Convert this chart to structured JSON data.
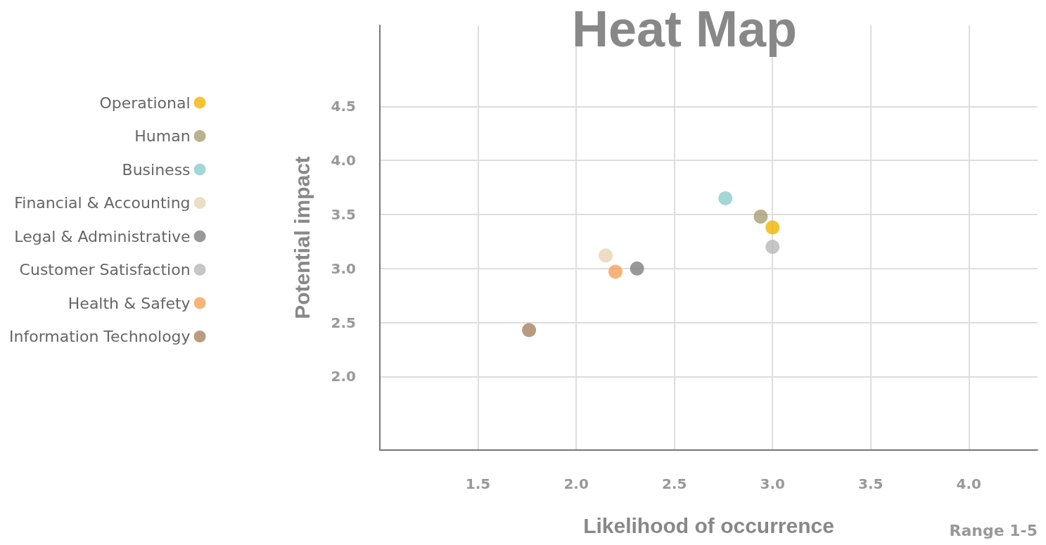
{
  "chart_data": {
    "type": "scatter",
    "title": "Heat Map",
    "xlabel": "Likelihood of occurrence",
    "ylabel": "Potential impact",
    "annotations": [
      "Range 1-5"
    ],
    "xlim": [
      1.0,
      4.35
    ],
    "ylim": [
      1.32,
      5.25
    ],
    "xticks": [
      1.5,
      {
        "value": 2,
        "label": "2.0"
      },
      2.5,
      {
        "value": 3,
        "label": "3.0"
      },
      3.5,
      {
        "value": 4,
        "label": "4.0"
      }
    ],
    "yticks": [
      {
        "value": 2,
        "label": "2.0"
      },
      2.5,
      {
        "value": 3,
        "label": "3.0"
      },
      3.5,
      {
        "value": 4,
        "label": "4.0"
      },
      4.5
    ],
    "grid": true,
    "legend": "left",
    "marker": "circle",
    "series": [
      {
        "name": "Operational",
        "color": "#f0b400",
        "x": [
          3.0
        ],
        "values": [
          3.38
        ]
      },
      {
        "name": "Human",
        "color": "#a89f72",
        "x": [
          2.94
        ],
        "values": [
          3.48
        ]
      },
      {
        "name": "Business",
        "color": "#8ecccc",
        "x": [
          2.76
        ],
        "values": [
          3.65
        ]
      },
      {
        "name": "Financial & Accounting",
        "color": "#e6d6b4",
        "x": [
          2.15
        ],
        "values": [
          3.12
        ]
      },
      {
        "name": "Legal & Administrative",
        "color": "#808080",
        "x": [
          2.31
        ],
        "values": [
          3.0
        ]
      },
      {
        "name": "Customer Satisfaction",
        "color": "#b8b8b8",
        "x": [
          3.0
        ],
        "values": [
          3.2
        ]
      },
      {
        "name": "Health & Safety",
        "color": "#f5a058",
        "x": [
          2.2
        ],
        "values": [
          2.97
        ]
      },
      {
        "name": "Information Technology",
        "color": "#a88260",
        "x": [
          1.76
        ],
        "values": [
          2.43
        ]
      }
    ]
  }
}
